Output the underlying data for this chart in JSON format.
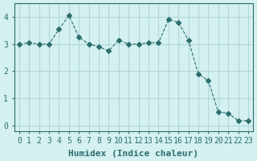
{
  "x": [
    0,
    1,
    2,
    3,
    4,
    5,
    6,
    7,
    8,
    9,
    10,
    11,
    12,
    13,
    14,
    15,
    16,
    17,
    18,
    19,
    20,
    21,
    22,
    23
  ],
  "y": [
    3.0,
    3.05,
    3.0,
    3.0,
    3.55,
    4.05,
    3.25,
    3.0,
    2.9,
    2.75,
    3.15,
    3.0,
    3.0,
    3.05,
    3.05,
    3.9,
    3.8,
    3.15,
    1.9,
    1.65,
    0.5,
    0.45,
    0.18,
    0.18
  ],
  "line_color": "#2d6e6e",
  "marker": "D",
  "marker_size": 3,
  "line_width": 0.8,
  "background_color": "#d4f0f0",
  "grid_color": "#b0d8d8",
  "xlabel": "Humidex (Indice chaleur)",
  "xlabel_fontsize": 8,
  "tick_fontsize": 7,
  "ylim": [
    -0.2,
    4.5
  ],
  "xlim": [
    -0.5,
    23.5
  ],
  "yticks": [
    0,
    1,
    2,
    3,
    4
  ],
  "xtick_labels": [
    "0",
    "1",
    "2",
    "3",
    "4",
    "5",
    "6",
    "7",
    "8",
    "9",
    "10",
    "11",
    "12",
    "13",
    "14",
    "15",
    "16",
    "17",
    "18",
    "19",
    "20",
    "21",
    "22",
    "23"
  ]
}
